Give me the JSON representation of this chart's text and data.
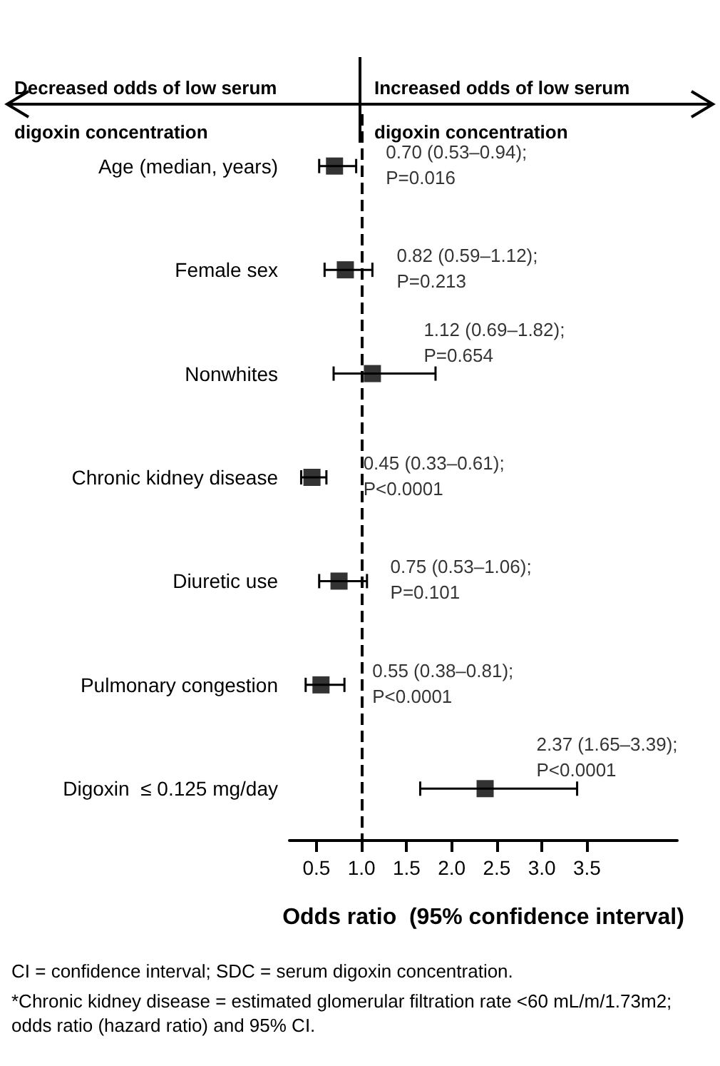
{
  "chart_data": {
    "type": "scatter",
    "orientation": "horizontal",
    "xlabel": "Odds ratio  (95% confidence interval)",
    "categories": [
      "Age (median, years)",
      "Female sex",
      "Nonwhites",
      "Chronic kidney disease",
      "Diuretic use",
      "Pulmonary congestion",
      "Digoxin  ≤ 0.125 mg/day"
    ],
    "values": [
      0.7,
      0.82,
      1.12,
      0.45,
      0.75,
      0.55,
      2.37
    ],
    "errors": [
      [
        0.53,
        0.94
      ],
      [
        0.59,
        1.12
      ],
      [
        0.69,
        1.82
      ],
      [
        0.33,
        0.61
      ],
      [
        0.53,
        1.06
      ],
      [
        0.38,
        0.81
      ],
      [
        1.65,
        3.39
      ]
    ],
    "value_labels": [
      "0.70 (0.53–0.94);\nP=0.016",
      "0.82 (0.59–1.12);\nP=0.213",
      "1.12 (0.69–1.82);\nP=0.654",
      "0.45 (0.33–0.61);\nP<0.0001",
      "0.75 (0.53–1.06);\nP=0.101",
      "0.55 (0.38–0.81);\nP<0.0001",
      "2.37 (1.65–3.39);\nP<0.0001"
    ],
    "color": "#000000",
    "marker": "square",
    "xlim": [
      0.2,
      4.5
    ],
    "xticks": [
      0.5,
      {
        "value": 1,
        "label": "1.0"
      },
      1.5,
      {
        "value": 2,
        "label": "2.0"
      },
      2.5,
      {
        "value": 3,
        "label": "3.0"
      },
      3.5
    ],
    "ref_lines": [
      {
        "axis": "x",
        "value": 1,
        "line_style": "dashed",
        "color": "#000000"
      }
    ],
    "annotations": [
      "Decreased odds of low serum\ndigoxin concentration",
      "Increased odds of low serum\ndigoxin concentration",
      "CI = confidence interval; SDC = serum digoxin concentration.",
      "*Chronic kidney disease = estimated glomerular filtration rate <60 mL/m/1.73m2; odds ratio (hazard ratio) and 95% CI."
    ]
  }
}
